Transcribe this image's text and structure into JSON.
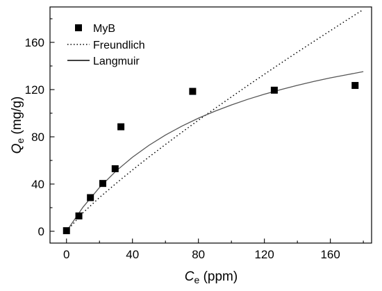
{
  "chart_data": {
    "type": "scatter",
    "title": "",
    "xlabel": {
      "main": "C",
      "sub": "e",
      "rest": " (ppm)"
    },
    "ylabel": {
      "main": "Q",
      "sub": "e",
      "rest": " (mg/g)"
    },
    "xlim": [
      -10,
      185
    ],
    "ylim": [
      -10,
      190
    ],
    "xticks": [
      0,
      40,
      80,
      120,
      160
    ],
    "yticks": [
      0,
      40,
      80,
      120,
      160
    ],
    "grid": false,
    "legend_position": "top-left",
    "series": [
      {
        "name": "MyB",
        "kind": "points",
        "marker": "square",
        "color": "#000000",
        "x": [
          0,
          7.5,
          14.5,
          22,
          29.5,
          33,
          76.5,
          126,
          175
        ],
        "y": [
          0.5,
          13,
          28.5,
          40.5,
          53,
          88.5,
          118.5,
          119.5,
          123.5
        ]
      },
      {
        "name": "Freundlich",
        "kind": "line",
        "style": "dotted",
        "color": "#000000",
        "x": [
          0,
          10,
          20,
          30,
          40,
          50,
          60,
          70,
          80,
          90,
          100,
          110,
          120,
          130,
          140,
          150,
          160,
          170,
          180
        ],
        "y": [
          0,
          15.7,
          28.6,
          40.5,
          51.9,
          62.9,
          73.5,
          83.9,
          94.1,
          104.0,
          113.8,
          123.5,
          133.0,
          142.4,
          151.7,
          160.8,
          169.9,
          178.9,
          187.8
        ]
      },
      {
        "name": "Langmuir",
        "kind": "line",
        "style": "solid",
        "color": "#555555",
        "x": [
          0,
          10,
          20,
          30,
          40,
          50,
          60,
          70,
          80,
          90,
          100,
          110,
          120,
          130,
          140,
          150,
          160,
          170,
          180
        ],
        "y": [
          0,
          20.4,
          37.1,
          51.0,
          62.7,
          72.8,
          81.5,
          89.1,
          95.8,
          101.7,
          107.0,
          111.8,
          116.1,
          120.0,
          123.6,
          126.9,
          129.9,
          132.6,
          135.2
        ]
      }
    ]
  }
}
